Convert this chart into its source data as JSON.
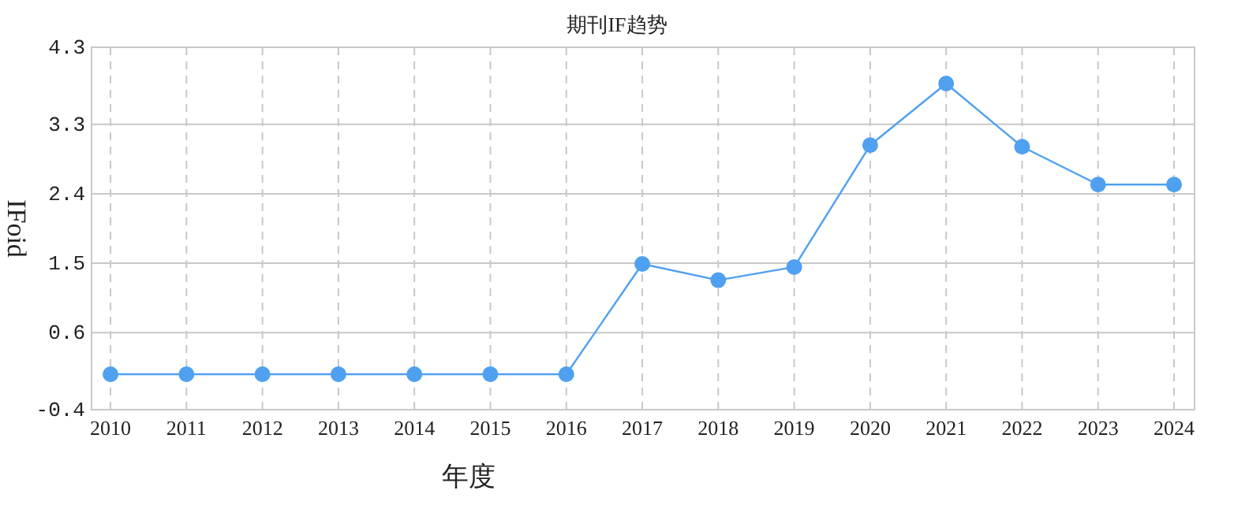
{
  "chart_data": {
    "type": "line",
    "title": "期刊IF趋势",
    "xlabel": "年度",
    "ylabel": "IFoid",
    "categories": [
      "2010",
      "2011",
      "2012",
      "2013",
      "2014",
      "2015",
      "2016",
      "2017",
      "2018",
      "2019",
      "2020",
      "2021",
      "2022",
      "2023",
      "2024"
    ],
    "series": [
      {
        "color": "#4fa0f0",
        "values": [
          0.06,
          0.06,
          0.06,
          0.06,
          0.06,
          0.06,
          0.06,
          1.49,
          1.28,
          1.45,
          3.03,
          3.83,
          3.01,
          2.52,
          2.52
        ]
      }
    ],
    "ylim": [
      -0.4,
      4.3
    ],
    "yticks": [
      -0.4,
      0.6,
      1.5,
      2.4,
      3.3,
      4.3
    ],
    "grid": true,
    "marker": "circle",
    "line_style": "solid"
  }
}
